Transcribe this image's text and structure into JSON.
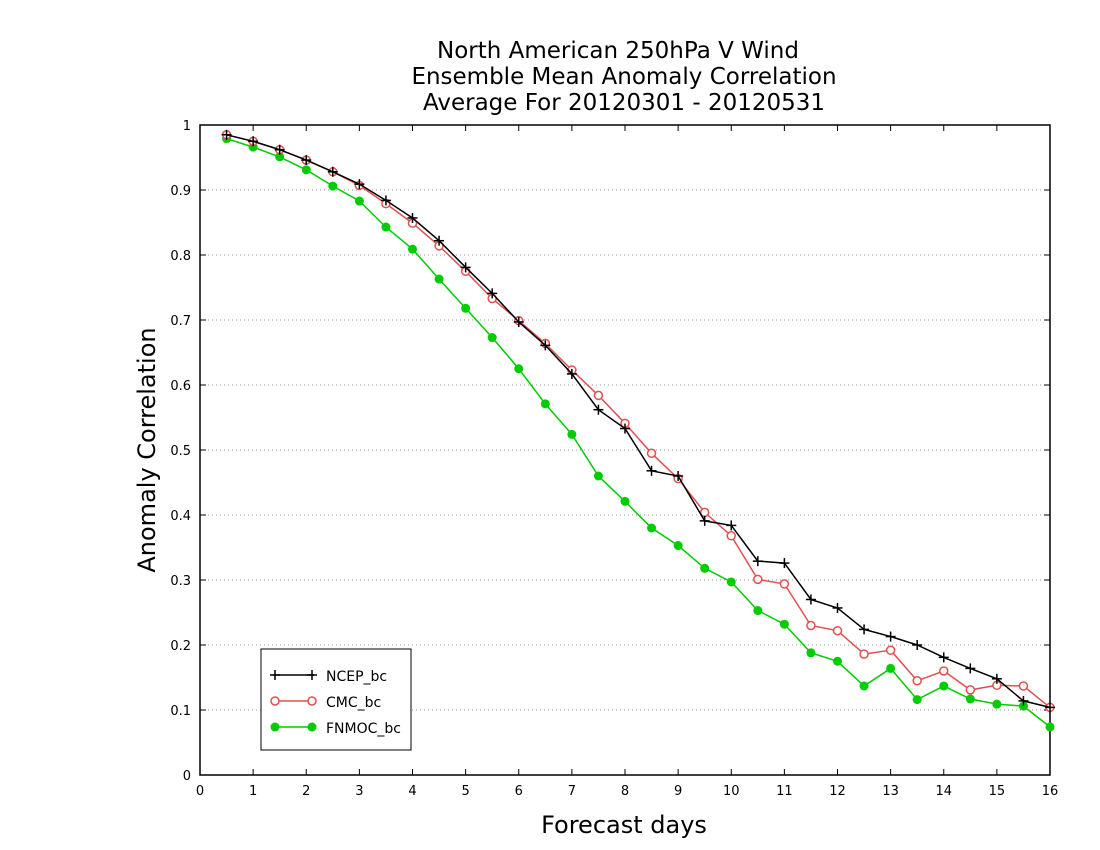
{
  "chart_data": {
    "type": "line",
    "title_lines": [
      "North American 250hPa V Wind",
      "Ensemble Mean Anomaly Correlation",
      "Average For 20120301 - 20120531"
    ],
    "xlabel": "Forecast days",
    "ylabel": "Anomaly Correlation",
    "xlim": [
      0,
      16
    ],
    "ylim": [
      0,
      1
    ],
    "xticks": [
      0,
      1,
      2,
      3,
      4,
      5,
      6,
      7,
      8,
      9,
      10,
      11,
      12,
      13,
      14,
      15,
      16
    ],
    "yticks": [
      0,
      0.1,
      0.2,
      0.3,
      0.4,
      0.5,
      0.6,
      0.7,
      0.8,
      0.9,
      1
    ],
    "ytick_labels": [
      "0",
      "0.1",
      "0.2",
      "0.3",
      "0.4",
      "0.5",
      "0.6",
      "0.7",
      "0.8",
      "0.9",
      "1"
    ],
    "grid": "horizontal dotted",
    "legend_position": "bottom-left",
    "x": [
      0.5,
      1,
      1.5,
      2,
      2.5,
      3,
      3.5,
      4,
      4.5,
      5,
      5.5,
      6,
      6.5,
      7,
      7.5,
      8,
      8.5,
      9,
      9.5,
      10,
      10.5,
      11,
      11.5,
      12,
      12.5,
      13,
      13.5,
      14,
      14.5,
      15,
      15.5,
      16
    ],
    "series": [
      {
        "name": "NCEP_bc",
        "color": "#000000",
        "marker": "plus",
        "values": [
          0.985,
          0.975,
          0.962,
          0.946,
          0.928,
          0.909,
          0.884,
          0.857,
          0.822,
          0.781,
          0.741,
          0.697,
          0.661,
          0.617,
          0.562,
          0.533,
          0.468,
          0.46,
          0.391,
          0.384,
          0.329,
          0.326,
          0.27,
          0.257,
          0.224,
          0.213,
          0.2,
          0.181,
          0.164,
          0.148,
          0.114,
          0.104
        ]
      },
      {
        "name": "CMC_bc",
        "color": "#e0504f",
        "marker": "open-circle",
        "values": [
          0.985,
          0.975,
          0.962,
          0.946,
          0.928,
          0.907,
          0.879,
          0.849,
          0.814,
          0.775,
          0.733,
          0.699,
          0.664,
          0.623,
          0.584,
          0.541,
          0.495,
          0.456,
          0.404,
          0.368,
          0.301,
          0.294,
          0.23,
          0.222,
          0.186,
          0.192,
          0.145,
          0.16,
          0.131,
          0.138,
          0.137,
          0.104
        ]
      },
      {
        "name": "FNMOC_bc",
        "color": "#00cc00",
        "marker": "filled-circle",
        "values": [
          0.979,
          0.966,
          0.951,
          0.931,
          0.906,
          0.883,
          0.843,
          0.809,
          0.763,
          0.718,
          0.673,
          0.625,
          0.571,
          0.524,
          0.46,
          0.421,
          0.38,
          0.353,
          0.318,
          0.297,
          0.253,
          0.232,
          0.188,
          0.175,
          0.137,
          0.164,
          0.116,
          0.137,
          0.117,
          0.109,
          0.106,
          0.074
        ]
      }
    ]
  }
}
